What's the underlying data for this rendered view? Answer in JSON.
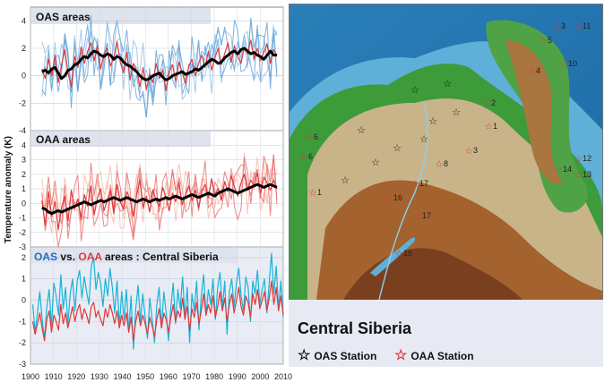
{
  "y_axis_label": "Temperature anomaly (K)",
  "x_ticks": [
    1900,
    1910,
    1920,
    1930,
    1940,
    1950,
    1960,
    1970,
    1980,
    1990,
    2000,
    2010
  ],
  "legend": {
    "title": "Central Siberia",
    "oas_label": "OAS Station",
    "oaa_label": "OAA Station"
  },
  "colors": {
    "oas_light": "#8fbfe6",
    "oas_mid": "#5c9fd8",
    "oaa_light": "#f5b8a6",
    "oaa_mid": "#e7696a",
    "red": "#e0383b",
    "cyan": "#19b3d8",
    "black": "#000000"
  },
  "station_labels": [
    {
      "text": "5"
    },
    {
      "text": "3"
    },
    {
      "text": "11"
    },
    {
      "text": "10"
    },
    {
      "text": "4"
    },
    {
      "text": "2"
    },
    {
      "text": "6"
    },
    {
      "text": "1"
    },
    {
      "text": "8"
    },
    {
      "text": "3"
    },
    {
      "text": "12"
    },
    {
      "text": "14"
    },
    {
      "text": "13"
    },
    {
      "text": "16"
    },
    {
      "text": "17"
    },
    {
      "text": "17"
    },
    {
      "text": "15"
    },
    {
      "text": "1"
    },
    {
      "text": "6"
    }
  ],
  "chart_data": [
    {
      "type": "line",
      "title": "OAS areas",
      "ylim": [
        -4,
        5
      ],
      "yticks": [
        -4,
        -2,
        0,
        2,
        4
      ],
      "x_start": 1905,
      "series": [
        {
          "name": "mean",
          "color": "#000000",
          "values": [
            0.3,
            0.4,
            0.2,
            0.5,
            0.6,
            0.2,
            -0.2,
            0.0,
            0.4,
            0.5,
            0.8,
            0.9,
            1.2,
            1.4,
            1.3,
            1.6,
            1.8,
            1.7,
            1.5,
            1.4,
            1.6,
            1.5,
            1.2,
            1.4,
            1.3,
            1.0,
            0.8,
            0.7,
            0.5,
            0.3,
            0.0,
            -0.2,
            -0.3,
            -0.2,
            0.0,
            0.1,
            0.2,
            -0.1,
            -0.3,
            -0.2,
            0.0,
            0.1,
            0.2,
            0.3,
            0.1,
            0.2,
            0.3,
            0.5,
            0.4,
            0.6,
            0.8,
            1.0,
            1.2,
            1.1,
            0.9,
            1.0,
            1.3,
            1.5,
            1.7,
            1.8,
            1.6,
            1.9,
            2.0,
            1.8,
            1.6,
            1.7,
            1.5,
            1.4,
            1.2,
            1.5,
            1.8,
            1.5,
            1.5
          ]
        },
        {
          "name": "red",
          "color": "#e0383b",
          "values": [
            0.5,
            -0.2,
            1.2,
            0.0,
            1.5,
            -0.5,
            0.8,
            1.9,
            0.2,
            -0.8,
            1.4,
            0.6,
            2.1,
            0.9,
            1.8,
            2.4,
            1.1,
            2.2,
            0.5,
            1.6,
            2.0,
            0.7,
            1.3,
            2.5,
            1.0,
            0.2,
            1.7,
            -0.3,
            0.9,
            0.4,
            -0.8,
            0.6,
            -1.0,
            0.1,
            -0.5,
            0.9,
            -0.2,
            0.4,
            -1.1,
            0.3,
            0.8,
            -0.4,
            1.0,
            0.2,
            -0.6,
            0.7,
            1.2,
            0.0,
            0.9,
            1.5,
            0.6,
            1.8,
            0.4,
            1.3,
            2.0,
            0.8,
            1.6,
            2.4,
            1.0,
            2.2,
            1.4,
            0.9,
            2.1,
            1.6,
            2.6,
            1.2,
            2.0,
            1.1,
            1.7,
            2.3,
            0.9,
            1.9,
            1.5
          ]
        }
      ],
      "n_background": 4
    },
    {
      "type": "line",
      "title": "OAA areas",
      "ylim": [
        -3,
        5
      ],
      "yticks": [
        -3,
        -2,
        -1,
        0,
        1,
        2,
        3,
        4
      ],
      "x_start": 1905,
      "series": [
        {
          "name": "mean",
          "color": "#000000",
          "values": [
            -0.3,
            -0.4,
            -0.6,
            -0.7,
            -0.6,
            -0.5,
            -0.6,
            -0.5,
            -0.4,
            -0.3,
            -0.2,
            -0.1,
            0.0,
            0.1,
            0.0,
            -0.1,
            0.0,
            0.1,
            0.2,
            0.1,
            0.2,
            0.3,
            0.4,
            0.3,
            0.2,
            0.3,
            0.4,
            0.3,
            0.2,
            0.1,
            0.2,
            0.3,
            0.2,
            0.1,
            0.2,
            0.3,
            0.2,
            0.3,
            0.4,
            0.3,
            0.4,
            0.5,
            0.4,
            0.3,
            0.4,
            0.5,
            0.6,
            0.5,
            0.4,
            0.5,
            0.6,
            0.7,
            0.6,
            0.5,
            0.7,
            0.8,
            0.9,
            1.0,
            0.9,
            0.8,
            0.7,
            0.8,
            0.9,
            1.0,
            1.1,
            1.2,
            1.3,
            1.2,
            1.1,
            1.2,
            1.3,
            1.2,
            1.1
          ]
        },
        {
          "name": "red",
          "color": "#e0383b",
          "values": [
            0.2,
            -1.5,
            0.8,
            -0.9,
            0.1,
            -1.8,
            -0.3,
            0.5,
            -1.2,
            0.9,
            -0.4,
            0.3,
            -1.0,
            0.6,
            -0.2,
            1.2,
            -0.8,
            0.4,
            1.0,
            -0.5,
            0.2,
            0.9,
            -0.7,
            1.3,
            0.1,
            -0.4,
            0.8,
            0.3,
            -0.9,
            0.6,
            1.6,
            -0.3,
            0.5,
            -0.6,
            0.9,
            0.2,
            -0.2,
            1.1,
            0.4,
            -0.5,
            0.7,
            0.1,
            1.4,
            -0.1,
            0.6,
            1.2,
            0.2,
            0.9,
            -0.3,
            0.8,
            1.3,
            0.4,
            1.7,
            0.6,
            1.0,
            0.2,
            1.5,
            0.8,
            1.9,
            1.1,
            0.5,
            1.4,
            2.0,
            0.9,
            1.6,
            1.2,
            2.1,
            0.7,
            1.8,
            1.4,
            0.9,
            1.6,
            1.0
          ]
        }
      ],
      "n_background": 4
    },
    {
      "type": "line",
      "title_oas": "OAS",
      "title_vs": " vs. ",
      "title_oaa": "OAA",
      "title_rest": " areas : Central Siberia",
      "ylim": [
        -3,
        2.5
      ],
      "yticks": [
        -3,
        -2,
        -1,
        0,
        1,
        2
      ],
      "x_start": 1901,
      "series": [
        {
          "name": "OAS",
          "color": "#19b3d8",
          "values": [
            -0.2,
            -1.5,
            -0.6,
            0.4,
            -0.9,
            -1.8,
            -0.3,
            0.5,
            -1.2,
            0.8,
            0.2,
            -0.7,
            1.2,
            -0.4,
            0.6,
            -1.1,
            0.3,
            1.0,
            -0.5,
            0.9,
            1.4,
            0.1,
            1.1,
            0.4,
            -0.2,
            1.6,
            2.0,
            0.5,
            1.3,
            0.8,
            -0.3,
            1.0,
            0.2,
            1.5,
            0.6,
            -0.6,
            0.9,
            -1.2,
            0.4,
            -0.9,
            0.5,
            -1.5,
            0.2,
            -2.3,
            -0.4,
            0.7,
            -1.0,
            0.3,
            -0.8,
            -1.8,
            0.1,
            -0.9,
            -2.0,
            -0.2,
            0.6,
            -1.3,
            0.4,
            -0.6,
            -1.9,
            -0.3,
            0.8,
            -1.1,
            0.5,
            -0.4,
            1.1,
            -0.8,
            0.6,
            -2.0,
            0.3,
            -0.5,
            0.9,
            -1.4,
            0.2,
            1.2,
            -0.7,
            0.5,
            -0.2,
            1.0,
            -0.9,
            0.6,
            1.3,
            -0.4,
            0.9,
            -1.6,
            0.4,
            1.0,
            -0.3,
            0.8,
            1.5,
            0.2,
            -0.5,
            1.1,
            0.6,
            -1.0,
            0.9,
            0.3,
            1.4,
            -0.2,
            0.5,
            1.0,
            -0.6,
            0.8,
            2.2,
            0.3,
            1.6,
            -0.4,
            0.9,
            -0.8
          ]
        },
        {
          "name": "OAA",
          "color": "#e0383b",
          "values": [
            -1.0,
            -1.6,
            -1.1,
            -0.6,
            -1.3,
            -1.9,
            -0.9,
            -0.5,
            -1.5,
            -0.7,
            -1.0,
            -1.4,
            -0.2,
            -1.1,
            -0.6,
            -1.3,
            -0.8,
            -0.3,
            -1.0,
            -0.5,
            -0.2,
            -0.9,
            -0.4,
            -0.7,
            -1.1,
            -0.3,
            -0.1,
            -0.8,
            -0.5,
            -0.9,
            -1.2,
            -0.4,
            -0.8,
            -0.2,
            -0.6,
            -1.1,
            -0.5,
            -1.3,
            -0.7,
            -1.2,
            -0.6,
            -1.5,
            -0.8,
            -1.9,
            -1.0,
            -0.5,
            -1.2,
            -0.7,
            -1.1,
            -1.6,
            -0.8,
            -1.2,
            -1.7,
            -0.9,
            -0.4,
            -1.3,
            -0.6,
            -0.9,
            -1.5,
            -0.8,
            -0.2,
            -1.0,
            -0.5,
            -0.8,
            0.1,
            -0.9,
            -0.3,
            -1.4,
            -0.4,
            -0.8,
            -0.1,
            -1.1,
            -0.5,
            0.3,
            -0.7,
            -0.2,
            -0.6,
            0.2,
            -0.8,
            -0.3,
            0.4,
            -0.5,
            0.1,
            -1.0,
            -0.2,
            0.3,
            -0.6,
            0.0,
            0.6,
            -0.3,
            -0.7,
            0.2,
            -0.1,
            -0.8,
            0.3,
            -0.2,
            0.5,
            -0.4,
            0.0,
            0.4,
            -0.5,
            0.1,
            0.9,
            -0.2,
            0.6,
            -0.5,
            0.2,
            -0.7
          ]
        }
      ]
    }
  ]
}
